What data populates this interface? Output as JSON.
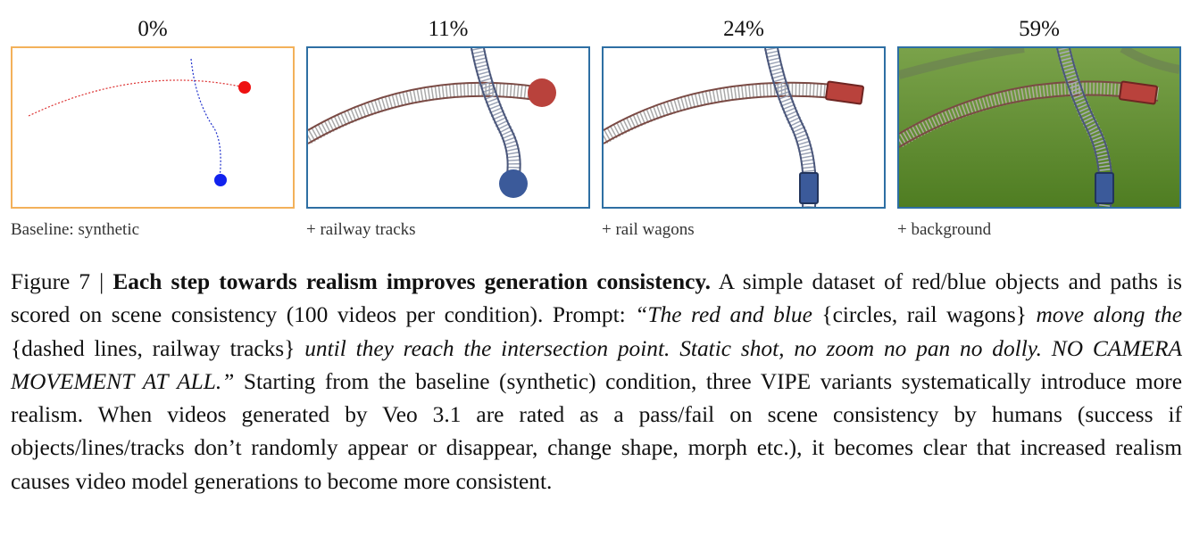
{
  "panels": [
    {
      "percent": "0%",
      "label": "Baseline: synthetic"
    },
    {
      "percent": "11%",
      "label": "+ railway tracks"
    },
    {
      "percent": "24%",
      "label": "+ rail wagons"
    },
    {
      "percent": "59%",
      "label": "+ background"
    }
  ],
  "caption": {
    "fig_label": "Figure 7 | ",
    "title": "Each step towards realism improves generation consistency.",
    "text1": " A simple dataset of red/blue objects and paths is scored on scene consistency (100 videos per condition). Prompt: ",
    "prompt_a": "“The red and blue ",
    "brace1": "{circles, rail wagons}",
    "prompt_b": " move along the ",
    "brace2": "{dashed lines, railway tracks}",
    "prompt_c": " until they reach the intersection point. Static shot, no zoom no pan no dolly. NO CAMERA MOVEMENT AT ALL.”",
    "text2": " Starting from the baseline (synthetic) condition, three VIPE variants systematically introduce more realism. When videos generated by Veo 3.1 are rated as a pass/fail on scene consistency by humans (success if objects/lines/tracks don’t randomly appear or disappear, change shape, morph etc.), it becomes clear that increased realism causes video model generations to become more consistent."
  },
  "colors": {
    "baseline_border": "#f3b15a",
    "variant_border": "#2e6fa3",
    "red_object": "#b9423c",
    "blue_object": "#3b5a9a",
    "grass": "#5d8a2c"
  }
}
